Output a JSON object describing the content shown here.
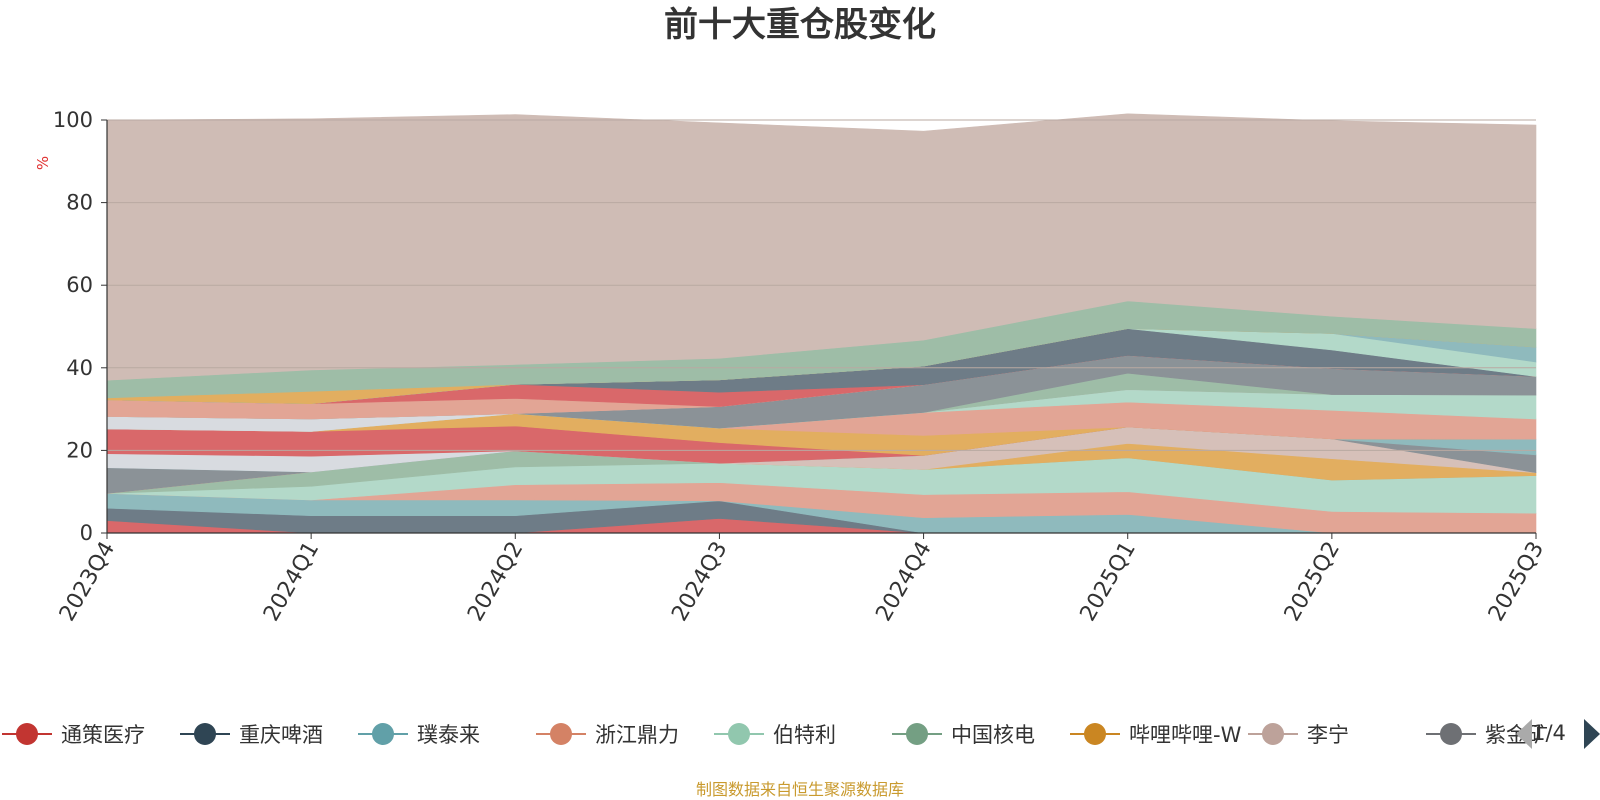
{
  "colors": {
    "background_band": "#cfbcb5",
    "axis": "#333333",
    "grid": "#b9a9a2",
    "unit": "#e03030",
    "source": "#c99a2e",
    "pager_active": "#2f4554",
    "pager_inactive": "#aaaaaa"
  },
  "legend": {
    "page_text": "1/4",
    "prev_icon": "triangle-left-icon",
    "next_icon": "triangle-right-icon"
  },
  "footer": {
    "source": "制图数据来自恒生聚源数据库"
  },
  "chart_data": {
    "type": "area",
    "stacked": true,
    "title": "前十大重仓股变化",
    "ylabel": "%",
    "xlabel": "",
    "ylim": [
      0,
      100
    ],
    "yticks": [
      0,
      20,
      40,
      60,
      80,
      100
    ],
    "grid": true,
    "legend_position": "bottom",
    "categories": [
      "2023Q4",
      "2024Q1",
      "2024Q2",
      "2024Q3",
      "2024Q4",
      "2025Q1",
      "2025Q2",
      "2025Q3"
    ],
    "legend_items": [
      {
        "name": "通策医疗",
        "color": "#c23531"
      },
      {
        "name": "重庆啤酒",
        "color": "#2f4554"
      },
      {
        "name": "璞泰来",
        "color": "#61a0a8"
      },
      {
        "name": "浙江鼎力",
        "color": "#d48265"
      },
      {
        "name": "伯特利",
        "color": "#91c7ae"
      },
      {
        "name": "中国核电",
        "color": "#749f83"
      },
      {
        "name": "哔哩哔哩-W",
        "color": "#ca8622"
      },
      {
        "name": "李宁",
        "color": "#bda29a"
      },
      {
        "name": "紫金矿"
      }
    ],
    "series": [
      {
        "color": "#d9686a",
        "values": [
          3.0,
          0.0,
          0.0,
          3.5,
          0.0,
          0.0,
          0.0,
          0.0
        ]
      },
      {
        "color": "#6e7c87",
        "values": [
          3.0,
          4.2,
          4.2,
          4.3,
          0.0,
          0.0,
          0.0,
          0.0
        ]
      },
      {
        "color": "#8fbabd",
        "values": [
          3.6,
          3.8,
          3.8,
          0.0,
          3.7,
          4.5,
          0.0,
          0.0
        ]
      },
      {
        "color": "#e2a595",
        "values": [
          0.0,
          0.0,
          3.7,
          4.4,
          5.6,
          5.5,
          5.2,
          4.8
        ]
      },
      {
        "color": "#b3d9c9",
        "values": [
          0.0,
          3.3,
          4.3,
          4.7,
          6.1,
          8.2,
          7.6,
          9.1
        ]
      },
      {
        "color": "#9ebda7",
        "values": [
          0.0,
          3.5,
          3.9,
          0.0,
          0.0,
          0.0,
          0.0,
          0.0
        ]
      },
      {
        "color": "#e2ae60",
        "values": [
          0.0,
          0.0,
          0.0,
          0.0,
          0.0,
          3.5,
          5.2,
          0.7
        ]
      },
      {
        "color": "#d6c0b9",
        "values": [
          0.0,
          0.0,
          0.0,
          0.0,
          3.4,
          4.0,
          4.8,
          0.0
        ]
      },
      {
        "color": "#8b9297",
        "values": [
          6.2,
          0.0,
          0.0,
          0.0,
          0.0,
          0.0,
          0.0,
          4.3
        ]
      },
      {
        "color": "#8fbabd",
        "values": [
          0.0,
          0.0,
          0.0,
          0.0,
          0.0,
          0.0,
          0.0,
          3.8
        ]
      },
      {
        "color": "#d8dbe0",
        "values": [
          3.4,
          3.8,
          0.0,
          0.0,
          0.0,
          0.0,
          0.0,
          0.0
        ]
      },
      {
        "color": "#d9686a",
        "values": [
          6.0,
          6.0,
          6.0,
          5.0,
          0.0,
          0.0,
          0.0,
          0.0
        ]
      },
      {
        "color": "#e2ae60",
        "values": [
          0.0,
          0.0,
          3.0,
          3.5,
          4.8,
          0.0,
          0.0,
          0.0
        ]
      },
      {
        "color": "#e2a595",
        "values": [
          0.0,
          0.0,
          0.0,
          0.0,
          5.6,
          6.0,
          6.9,
          4.9
        ]
      },
      {
        "color": "#b3d9c9",
        "values": [
          0.0,
          0.0,
          0.0,
          0.0,
          0.0,
          3.0,
          3.8,
          5.8
        ]
      },
      {
        "color": "#d8dbe0",
        "values": [
          3.0,
          3.0,
          0.0,
          0.0,
          0.0,
          0.0,
          0.0,
          0.0
        ]
      },
      {
        "color": "#9ebda7",
        "values": [
          0.0,
          0.0,
          0.0,
          0.0,
          0.0,
          4.0,
          0.0,
          0.0
        ]
      },
      {
        "color": "#8b9297",
        "values": [
          0.0,
          0.0,
          0.0,
          5.2,
          6.7,
          4.3,
          6.3,
          4.5
        ]
      },
      {
        "color": "#d6c0b9",
        "values": [
          0.0,
          0.0,
          0.0,
          0.0,
          0.0,
          0.0,
          0.0,
          0.0
        ]
      },
      {
        "color": "#e2a595",
        "values": [
          4.0,
          3.7,
          3.7,
          0.0,
          0.0,
          0.0,
          0.0,
          0.0
        ]
      },
      {
        "color": "#d9686a",
        "values": [
          0.0,
          0.0,
          3.4,
          3.5,
          0.0,
          0.0,
          0.0,
          0.0
        ]
      },
      {
        "color": "#6e7c87",
        "values": [
          0.0,
          0.0,
          0.0,
          3.0,
          4.5,
          6.5,
          4.5,
          0.0
        ]
      },
      {
        "color": "#b3d9c9",
        "values": [
          0.0,
          0.0,
          0.0,
          0.0,
          0.0,
          0.0,
          4.0,
          3.5
        ]
      },
      {
        "color": "#8fbabd",
        "values": [
          0.0,
          0.0,
          0.0,
          0.0,
          0.0,
          0.0,
          0.0,
          3.6
        ]
      },
      {
        "color": "#e2ae60",
        "values": [
          0.5,
          3.0,
          0.0,
          0.0,
          0.0,
          0.0,
          0.0,
          0.0
        ]
      },
      {
        "color": "#9ebda7",
        "values": [
          4.3,
          5.2,
          4.8,
          5.2,
          6.3,
          6.7,
          4.2,
          4.5
        ]
      },
      {
        "color": "#cfbcb5",
        "values": [
          63.0,
          60.8,
          60.5,
          57.0,
          50.6,
          45.3,
          47.3,
          49.3
        ]
      }
    ]
  }
}
